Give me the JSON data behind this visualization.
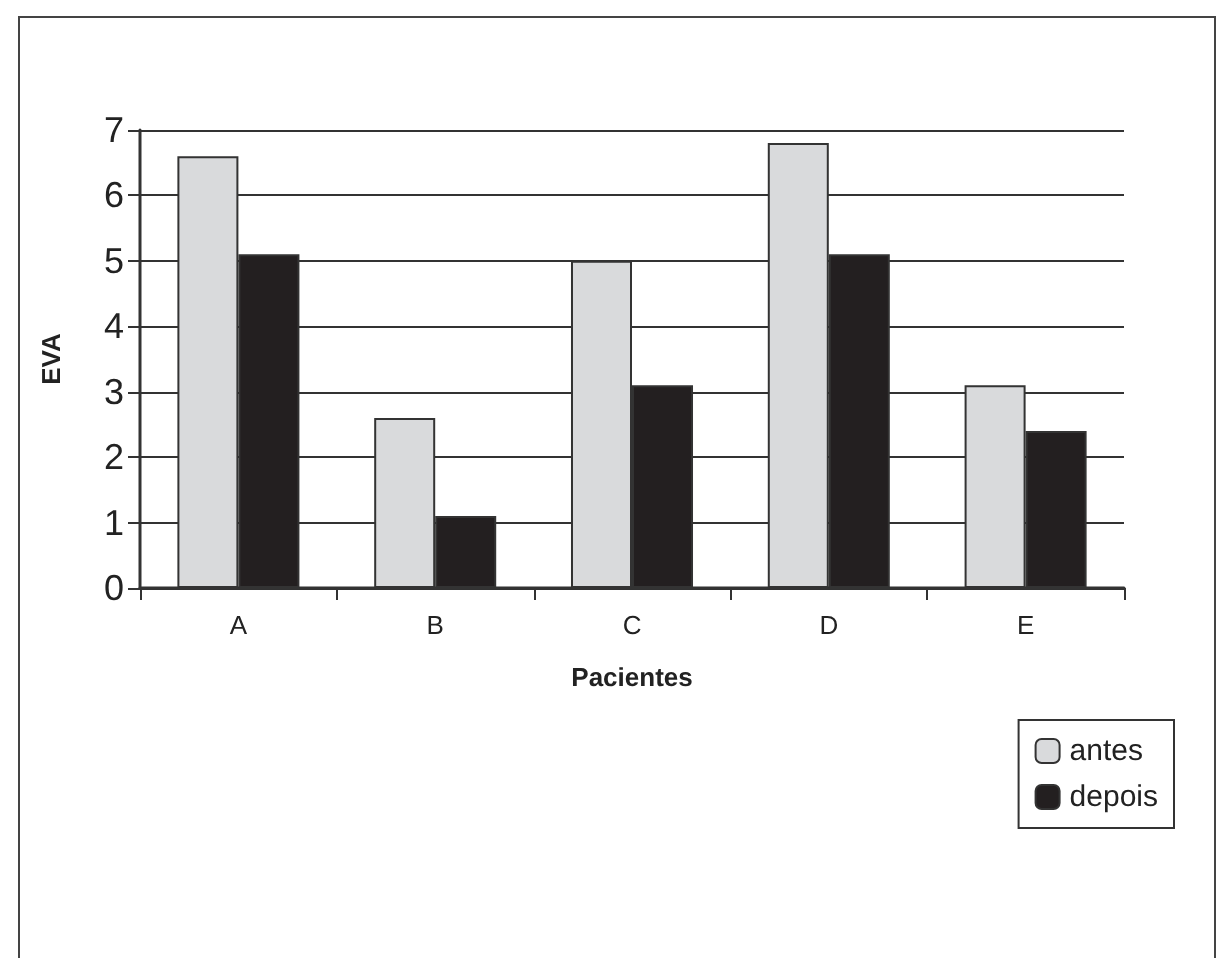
{
  "chart_data": {
    "type": "bar",
    "xlabel": "Pacientes",
    "ylabel": "EVA",
    "categories": [
      "A",
      "B",
      "C",
      "D",
      "E"
    ],
    "series": [
      {
        "name": "antes",
        "color": "#d9dadc",
        "values": [
          6.6,
          2.6,
          5.0,
          6.8,
          3.1
        ]
      },
      {
        "name": "depois",
        "color": "#231f20",
        "values": [
          5.1,
          1.1,
          3.1,
          5.1,
          2.4
        ]
      }
    ],
    "ylim": [
      0,
      7
    ],
    "yticks": [
      0,
      1,
      2,
      3,
      4,
      5,
      6,
      7
    ],
    "grid": "y",
    "legend": "bottom right"
  }
}
